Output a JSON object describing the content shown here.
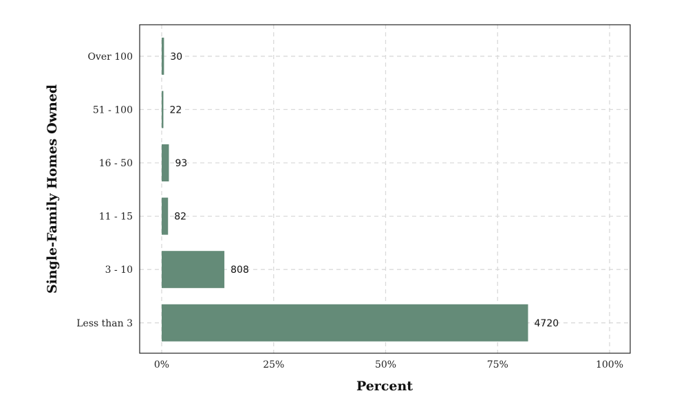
{
  "chart_data": {
    "type": "bar",
    "orientation": "horizontal",
    "categories": [
      "Less than 3",
      "3 - 10",
      "11 - 15",
      "16 - 50",
      "51 - 100",
      "Over 100"
    ],
    "values": [
      4720,
      808,
      82,
      93,
      22,
      30
    ],
    "percent_values": [
      81.8,
      14.0,
      1.42,
      1.61,
      0.38,
      0.52
    ],
    "data_labels": [
      "4720",
      "808",
      "82",
      "93",
      "22",
      "30"
    ],
    "xlabel": "Percent",
    "ylabel": "Single-Family Homes Owned",
    "xlim": [
      0,
      100
    ],
    "x_ticks": [
      0,
      25,
      50,
      75,
      100
    ],
    "x_tick_labels": [
      "0%",
      "25%",
      "50%",
      "75%",
      "100%"
    ],
    "grid": true,
    "legend": "none",
    "bar_color": "#648b78",
    "grid_color": "#d9d9d9"
  }
}
